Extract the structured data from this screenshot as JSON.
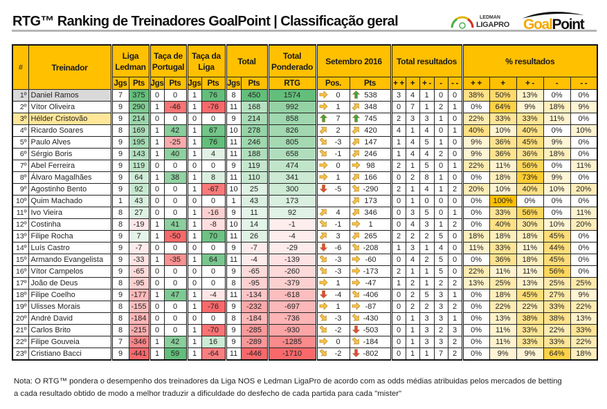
{
  "title": "RTG™ Ranking de Treinadores GoalPoint | Classificação geral",
  "logos": {
    "ligapro_top": "LEDMAN",
    "ligapro_bottom": "LIGAPRO",
    "goalpoint_a": "Goal",
    "goalpoint_b": "Point"
  },
  "colors": {
    "header": "#FFC000",
    "positive": "#63BE7B",
    "negative": "#F8696B",
    "pct": "#FFC000",
    "arrow_neutral": "#F5C24A",
    "arrow_up": "#3FA34D",
    "arrow_down": "#E0474C",
    "row_first": "#D9D9D9",
    "row_third": "#FFE699"
  },
  "header": {
    "rank": "#",
    "coach": "Treinador",
    "liga": "Liga Ledman",
    "taca_portugal": "Taça de Portugal",
    "taca_liga": "Taça da Liga",
    "total": "Total",
    "ponderado": "Total Ponderado",
    "rtg": "RTG",
    "month": "Setembro 2016",
    "total_res": "Total resultados",
    "pct_res": "% resultados",
    "jgs": "Jgs",
    "pts": "Pts",
    "pos": "Pos.",
    "res_cols": [
      "+ +",
      "+",
      "+ -",
      "-",
      "- -"
    ]
  },
  "rows": [
    {
      "rank": "1º",
      "name": "Daniel Ramos",
      "v": [
        7,
        375,
        0,
        0,
        1,
        76,
        8,
        450,
        1574
      ],
      "pos_icon": "right",
      "pos": "0",
      "pts_icon": "up",
      "pts": "538",
      "res": [
        3,
        4,
        1,
        0,
        0
      ],
      "pct": [
        "38%",
        "50%",
        "13%",
        "0%",
        "0%"
      ]
    },
    {
      "rank": "2º",
      "name": "Vítor Oliveira",
      "v": [
        9,
        290,
        1,
        -46,
        1,
        -76,
        11,
        168,
        992
      ],
      "pos_icon": "right",
      "pos": "1",
      "pts_icon": "up-right",
      "pts": "348",
      "res": [
        0,
        7,
        1,
        2,
        1
      ],
      "pct": [
        "0%",
        "64%",
        "9%",
        "18%",
        "9%"
      ]
    },
    {
      "rank": "3º",
      "name": "Hélder Cristovão",
      "v": [
        9,
        214,
        0,
        0,
        0,
        0,
        9,
        214,
        858
      ],
      "pos_icon": "up",
      "pos": "7",
      "pts_icon": "up",
      "pts": "745",
      "res": [
        2,
        3,
        3,
        1,
        0
      ],
      "pct": [
        "22%",
        "33%",
        "33%",
        "11%",
        "0%"
      ]
    },
    {
      "rank": "4º",
      "name": "Ricardo Soares",
      "v": [
        8,
        169,
        1,
        42,
        1,
        67,
        10,
        278,
        826
      ],
      "pos_icon": "up-right",
      "pos": "2",
      "pts_icon": "up-right",
      "pts": "420",
      "res": [
        4,
        1,
        4,
        0,
        1
      ],
      "pct": [
        "40%",
        "10%",
        "40%",
        "0%",
        "10%"
      ]
    },
    {
      "rank": "5º",
      "name": "Paulo Alves",
      "v": [
        9,
        195,
        1,
        -25,
        1,
        76,
        11,
        246,
        805
      ],
      "pos_icon": "down-right",
      "pos": "-3",
      "pts_icon": "up-right",
      "pts": "147",
      "res": [
        1,
        4,
        5,
        1,
        0
      ],
      "pct": [
        "9%",
        "36%",
        "45%",
        "9%",
        "0%"
      ]
    },
    {
      "rank": "6º",
      "name": "Sérgio Boris",
      "v": [
        9,
        143,
        1,
        40,
        1,
        4,
        11,
        188,
        658
      ],
      "pos_icon": "down-right",
      "pos": "-1",
      "pts_icon": "up-right",
      "pts": "246",
      "res": [
        1,
        4,
        4,
        2,
        0
      ],
      "pct": [
        "9%",
        "36%",
        "36%",
        "18%",
        "0%"
      ]
    },
    {
      "rank": "7º",
      "name": "Abel Ferreira",
      "v": [
        9,
        119,
        0,
        0,
        0,
        0,
        9,
        119,
        474
      ],
      "pos_icon": "right",
      "pos": "0",
      "pts_icon": "right",
      "pts": "98",
      "res": [
        2,
        1,
        5,
        0,
        1
      ],
      "pct": [
        "22%",
        "11%",
        "56%",
        "0%",
        "11%"
      ]
    },
    {
      "rank": "8º",
      "name": "Álvaro Magalhães",
      "v": [
        9,
        64,
        1,
        38,
        1,
        8,
        11,
        110,
        341
      ],
      "pos_icon": "right",
      "pos": "1",
      "pts_icon": "up-right",
      "pts": "166",
      "res": [
        0,
        2,
        8,
        1,
        0
      ],
      "pct": [
        "0%",
        "18%",
        "73%",
        "9%",
        "0%"
      ]
    },
    {
      "rank": "9º",
      "name": "Agostinho Bento",
      "v": [
        9,
        92,
        0,
        0,
        1,
        -67,
        10,
        25,
        300
      ],
      "pos_icon": "down",
      "pos": "-5",
      "pts_icon": "down-right",
      "pts": "-290",
      "res": [
        2,
        1,
        4,
        1,
        2
      ],
      "pct": [
        "20%",
        "10%",
        "40%",
        "10%",
        "20%"
      ]
    },
    {
      "rank": "10º",
      "name": "Quim Machado",
      "v": [
        1,
        43,
        0,
        0,
        0,
        0,
        1,
        43,
        173
      ],
      "pos_icon": "",
      "pos": "",
      "pts_icon": "up-right",
      "pts": "173",
      "res": [
        0,
        1,
        0,
        0,
        0
      ],
      "pct": [
        "0%",
        "100%",
        "0%",
        "0%",
        "0%"
      ]
    },
    {
      "rank": "11º",
      "name": "Ivo Vieira",
      "v": [
        8,
        27,
        0,
        0,
        1,
        -16,
        9,
        11,
        92
      ],
      "pos_icon": "up-right",
      "pos": "4",
      "pts_icon": "up-right",
      "pts": "346",
      "res": [
        0,
        3,
        5,
        0,
        1
      ],
      "pct": [
        "0%",
        "33%",
        "56%",
        "0%",
        "11%"
      ]
    },
    {
      "rank": "12º",
      "name": "Costinha",
      "v": [
        8,
        -19,
        1,
        41,
        1,
        -8,
        10,
        14,
        -1
      ],
      "pos_icon": "down-right",
      "pos": "-1",
      "pts_icon": "right",
      "pts": "1",
      "res": [
        0,
        4,
        3,
        1,
        2
      ],
      "pct": [
        "0%",
        "40%",
        "30%",
        "10%",
        "20%"
      ]
    },
    {
      "rank": "13º",
      "name": "Filipe Rocha",
      "v": [
        9,
        7,
        1,
        -50,
        1,
        70,
        11,
        26,
        -4
      ],
      "pos_icon": "up-right",
      "pos": "3",
      "pts_icon": "up-right",
      "pts": "265",
      "res": [
        2,
        2,
        2,
        5,
        0
      ],
      "pct": [
        "18%",
        "18%",
        "18%",
        "45%",
        "0%"
      ]
    },
    {
      "rank": "14º",
      "name": "Luís Castro",
      "v": [
        9,
        -7,
        0,
        0,
        0,
        0,
        9,
        -7,
        -29
      ],
      "pos_icon": "down",
      "pos": "-6",
      "pts_icon": "down-right",
      "pts": "-208",
      "res": [
        1,
        3,
        1,
        4,
        0
      ],
      "pct": [
        "11%",
        "33%",
        "11%",
        "44%",
        "0%"
      ]
    },
    {
      "rank": "15º",
      "name": "Armando Evangelista",
      "v": [
        9,
        -33,
        1,
        -35,
        1,
        64,
        11,
        -4,
        -139
      ],
      "pos_icon": "down-right",
      "pos": "-3",
      "pts_icon": "right",
      "pts": "-60",
      "res": [
        0,
        4,
        2,
        5,
        0
      ],
      "pct": [
        "0%",
        "36%",
        "18%",
        "45%",
        "0%"
      ]
    },
    {
      "rank": "16º",
      "name": "Vítor Campelos",
      "v": [
        9,
        -65,
        0,
        0,
        0,
        0,
        9,
        -65,
        -260
      ],
      "pos_icon": "down-right",
      "pos": "-3",
      "pts_icon": "right",
      "pts": "-173",
      "res": [
        2,
        1,
        1,
        5,
        0
      ],
      "pct": [
        "22%",
        "11%",
        "11%",
        "56%",
        "0%"
      ]
    },
    {
      "rank": "17º",
      "name": "João de Deus",
      "v": [
        8,
        -95,
        0,
        0,
        0,
        0,
        8,
        -95,
        -379
      ],
      "pos_icon": "right",
      "pos": "1",
      "pts_icon": "right",
      "pts": "-47",
      "res": [
        1,
        2,
        1,
        2,
        2
      ],
      "pct": [
        "13%",
        "25%",
        "13%",
        "25%",
        "25%"
      ]
    },
    {
      "rank": "18º",
      "name": "Filipe Coelho",
      "v": [
        9,
        -177,
        1,
        47,
        1,
        -4,
        11,
        -134,
        -618
      ],
      "pos_icon": "down",
      "pos": "-4",
      "pts_icon": "down-right",
      "pts": "-406",
      "res": [
        0,
        2,
        5,
        3,
        1
      ],
      "pct": [
        "0%",
        "18%",
        "45%",
        "27%",
        "9%"
      ]
    },
    {
      "rank": "19º",
      "name": "Ulisses Morais",
      "v": [
        8,
        -155,
        0,
        0,
        1,
        -76,
        9,
        -232,
        -697
      ],
      "pos_icon": "right",
      "pos": "1",
      "pts_icon": "right",
      "pts": "-87",
      "res": [
        0,
        2,
        2,
        3,
        2
      ],
      "pct": [
        "0%",
        "22%",
        "22%",
        "33%",
        "22%"
      ]
    },
    {
      "rank": "20º",
      "name": "André David",
      "v": [
        8,
        -184,
        0,
        0,
        0,
        0,
        8,
        -184,
        -736
      ],
      "pos_icon": "down-right",
      "pos": "-3",
      "pts_icon": "down-right",
      "pts": "-430",
      "res": [
        0,
        1,
        3,
        3,
        1
      ],
      "pct": [
        "0%",
        "13%",
        "38%",
        "38%",
        "13%"
      ]
    },
    {
      "rank": "21º",
      "name": "Carlos Brito",
      "v": [
        8,
        -215,
        0,
        0,
        1,
        -70,
        9,
        -285,
        -930
      ],
      "pos_icon": "down-right",
      "pos": "-2",
      "pts_icon": "down",
      "pts": "-503",
      "res": [
        0,
        1,
        3,
        2,
        3
      ],
      "pct": [
        "0%",
        "11%",
        "33%",
        "22%",
        "33%"
      ]
    },
    {
      "rank": "22º",
      "name": "Filipe Gouveia",
      "v": [
        7,
        -346,
        1,
        42,
        1,
        16,
        9,
        -289,
        -1285
      ],
      "pos_icon": "right",
      "pos": "0",
      "pts_icon": "down-right",
      "pts": "-184",
      "res": [
        0,
        1,
        3,
        3,
        2
      ],
      "pct": [
        "0%",
        "11%",
        "33%",
        "33%",
        "22%"
      ]
    },
    {
      "rank": "23º",
      "name": "Cristiano Bacci",
      "v": [
        9,
        -441,
        1,
        59,
        1,
        -64,
        11,
        -446,
        -1710
      ],
      "pos_icon": "down-right",
      "pos": "-2",
      "pts_icon": "down",
      "pts": "-802",
      "res": [
        0,
        1,
        1,
        7,
        2
      ],
      "pct": [
        "0%",
        "9%",
        "9%",
        "64%",
        "18%"
      ]
    }
  ],
  "note": {
    "line1": "Nota: O RTG™ pondera o desempenho dos treinadores da Liga NOS e Ledman LigaPro de acordo com as odds médias atribuidas pelos mercados de betting",
    "line2": "a cada resultado obtido de modo a melhor traduzir a dificuldade do desfecho de cada partida para cada \"mister\""
  }
}
